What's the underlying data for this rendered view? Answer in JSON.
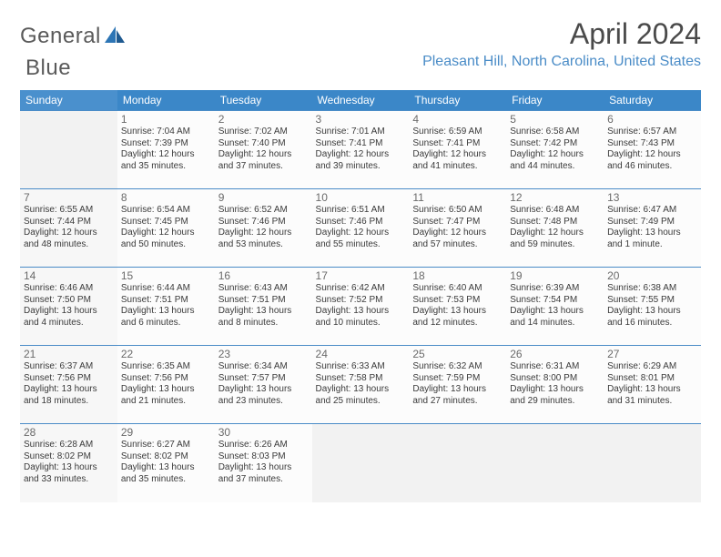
{
  "brand": {
    "name_a": "General",
    "name_b": "Blue"
  },
  "title": "April 2024",
  "location": "Pleasant Hill, North Carolina, United States",
  "colors": {
    "header_bg": "#3b87c8",
    "header_text": "#ffffff",
    "row_border": "#4a8cc7",
    "location_text": "#4a8cc7",
    "title_text": "#4a4a4a",
    "logo_gray": "#5a5a5a",
    "logo_blue": "#2d75b5",
    "cell_bg": "#fcfcfc",
    "empty_bg": "#f2f2f2",
    "sunday_bg": "#f7f7f7"
  },
  "weekdays": [
    "Sunday",
    "Monday",
    "Tuesday",
    "Wednesday",
    "Thursday",
    "Friday",
    "Saturday"
  ],
  "weeks": [
    [
      null,
      {
        "d": "1",
        "sr": "Sunrise: 7:04 AM",
        "ss": "Sunset: 7:39 PM",
        "dl": "Daylight: 12 hours and 35 minutes."
      },
      {
        "d": "2",
        "sr": "Sunrise: 7:02 AM",
        "ss": "Sunset: 7:40 PM",
        "dl": "Daylight: 12 hours and 37 minutes."
      },
      {
        "d": "3",
        "sr": "Sunrise: 7:01 AM",
        "ss": "Sunset: 7:41 PM",
        "dl": "Daylight: 12 hours and 39 minutes."
      },
      {
        "d": "4",
        "sr": "Sunrise: 6:59 AM",
        "ss": "Sunset: 7:41 PM",
        "dl": "Daylight: 12 hours and 41 minutes."
      },
      {
        "d": "5",
        "sr": "Sunrise: 6:58 AM",
        "ss": "Sunset: 7:42 PM",
        "dl": "Daylight: 12 hours and 44 minutes."
      },
      {
        "d": "6",
        "sr": "Sunrise: 6:57 AM",
        "ss": "Sunset: 7:43 PM",
        "dl": "Daylight: 12 hours and 46 minutes."
      }
    ],
    [
      {
        "d": "7",
        "sr": "Sunrise: 6:55 AM",
        "ss": "Sunset: 7:44 PM",
        "dl": "Daylight: 12 hours and 48 minutes."
      },
      {
        "d": "8",
        "sr": "Sunrise: 6:54 AM",
        "ss": "Sunset: 7:45 PM",
        "dl": "Daylight: 12 hours and 50 minutes."
      },
      {
        "d": "9",
        "sr": "Sunrise: 6:52 AM",
        "ss": "Sunset: 7:46 PM",
        "dl": "Daylight: 12 hours and 53 minutes."
      },
      {
        "d": "10",
        "sr": "Sunrise: 6:51 AM",
        "ss": "Sunset: 7:46 PM",
        "dl": "Daylight: 12 hours and 55 minutes."
      },
      {
        "d": "11",
        "sr": "Sunrise: 6:50 AM",
        "ss": "Sunset: 7:47 PM",
        "dl": "Daylight: 12 hours and 57 minutes."
      },
      {
        "d": "12",
        "sr": "Sunrise: 6:48 AM",
        "ss": "Sunset: 7:48 PM",
        "dl": "Daylight: 12 hours and 59 minutes."
      },
      {
        "d": "13",
        "sr": "Sunrise: 6:47 AM",
        "ss": "Sunset: 7:49 PM",
        "dl": "Daylight: 13 hours and 1 minute."
      }
    ],
    [
      {
        "d": "14",
        "sr": "Sunrise: 6:46 AM",
        "ss": "Sunset: 7:50 PM",
        "dl": "Daylight: 13 hours and 4 minutes."
      },
      {
        "d": "15",
        "sr": "Sunrise: 6:44 AM",
        "ss": "Sunset: 7:51 PM",
        "dl": "Daylight: 13 hours and 6 minutes."
      },
      {
        "d": "16",
        "sr": "Sunrise: 6:43 AM",
        "ss": "Sunset: 7:51 PM",
        "dl": "Daylight: 13 hours and 8 minutes."
      },
      {
        "d": "17",
        "sr": "Sunrise: 6:42 AM",
        "ss": "Sunset: 7:52 PM",
        "dl": "Daylight: 13 hours and 10 minutes."
      },
      {
        "d": "18",
        "sr": "Sunrise: 6:40 AM",
        "ss": "Sunset: 7:53 PM",
        "dl": "Daylight: 13 hours and 12 minutes."
      },
      {
        "d": "19",
        "sr": "Sunrise: 6:39 AM",
        "ss": "Sunset: 7:54 PM",
        "dl": "Daylight: 13 hours and 14 minutes."
      },
      {
        "d": "20",
        "sr": "Sunrise: 6:38 AM",
        "ss": "Sunset: 7:55 PM",
        "dl": "Daylight: 13 hours and 16 minutes."
      }
    ],
    [
      {
        "d": "21",
        "sr": "Sunrise: 6:37 AM",
        "ss": "Sunset: 7:56 PM",
        "dl": "Daylight: 13 hours and 18 minutes."
      },
      {
        "d": "22",
        "sr": "Sunrise: 6:35 AM",
        "ss": "Sunset: 7:56 PM",
        "dl": "Daylight: 13 hours and 21 minutes."
      },
      {
        "d": "23",
        "sr": "Sunrise: 6:34 AM",
        "ss": "Sunset: 7:57 PM",
        "dl": "Daylight: 13 hours and 23 minutes."
      },
      {
        "d": "24",
        "sr": "Sunrise: 6:33 AM",
        "ss": "Sunset: 7:58 PM",
        "dl": "Daylight: 13 hours and 25 minutes."
      },
      {
        "d": "25",
        "sr": "Sunrise: 6:32 AM",
        "ss": "Sunset: 7:59 PM",
        "dl": "Daylight: 13 hours and 27 minutes."
      },
      {
        "d": "26",
        "sr": "Sunrise: 6:31 AM",
        "ss": "Sunset: 8:00 PM",
        "dl": "Daylight: 13 hours and 29 minutes."
      },
      {
        "d": "27",
        "sr": "Sunrise: 6:29 AM",
        "ss": "Sunset: 8:01 PM",
        "dl": "Daylight: 13 hours and 31 minutes."
      }
    ],
    [
      {
        "d": "28",
        "sr": "Sunrise: 6:28 AM",
        "ss": "Sunset: 8:02 PM",
        "dl": "Daylight: 13 hours and 33 minutes."
      },
      {
        "d": "29",
        "sr": "Sunrise: 6:27 AM",
        "ss": "Sunset: 8:02 PM",
        "dl": "Daylight: 13 hours and 35 minutes."
      },
      {
        "d": "30",
        "sr": "Sunrise: 6:26 AM",
        "ss": "Sunset: 8:03 PM",
        "dl": "Daylight: 13 hours and 37 minutes."
      },
      null,
      null,
      null,
      null
    ]
  ]
}
